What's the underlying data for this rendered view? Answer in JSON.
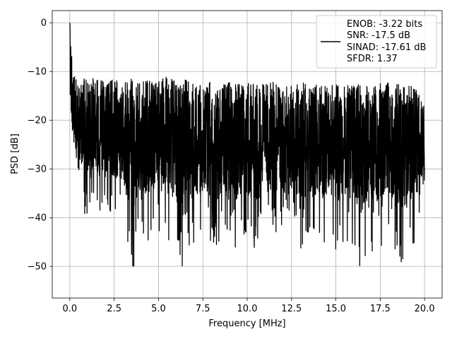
{
  "chart_data": {
    "type": "line",
    "title": "",
    "xlabel": "Frequency [MHz]",
    "ylabel": "PSD [dB]",
    "xlim": [
      -0.99,
      20.99
    ],
    "ylim": [
      -56.5,
      2.5
    ],
    "xticks": [
      0.0,
      2.5,
      5.0,
      7.5,
      10.0,
      12.5,
      15.0,
      17.5,
      20.0
    ],
    "xtick_labels": [
      "0.0",
      "2.5",
      "5.0",
      "7.5",
      "10.0",
      "12.5",
      "15.0",
      "17.5",
      "20.0"
    ],
    "yticks": [
      0,
      -10,
      -20,
      -30,
      -40,
      -50
    ],
    "ytick_labels": [
      "0",
      "−10",
      "−20",
      "−30",
      "−40",
      "−50"
    ],
    "grid": true,
    "legend_position": "top-right",
    "legend_entries": [
      "ENOB: -3.22 bits",
      "SNR: -17.5 dB",
      "SINAD: -17.61 dB",
      "SFDR: 1.37"
    ],
    "series_color": "#000000",
    "series": [
      {
        "x": [
          0.0,
          0.03,
          0.06,
          0.1,
          0.15,
          0.2,
          0.3,
          0.4,
          0.5,
          0.75,
          1.0,
          1.25,
          1.5,
          2.0,
          2.5,
          3.0,
          3.5,
          4.0,
          4.5,
          5.0,
          5.5,
          6.0,
          6.3,
          6.5,
          7.0,
          7.5,
          7.9,
          8.5,
          9.0,
          9.5,
          10.0,
          10.5,
          11.0,
          11.5,
          12.0,
          12.5,
          13.0,
          13.5,
          14.0,
          14.5,
          14.9,
          15.5,
          16.0,
          16.6,
          17.0,
          17.5,
          18.0,
          18.5,
          19.0,
          19.5,
          20.0
        ],
        "upper": [
          0.0,
          -2.0,
          -4.0,
          -6.0,
          -8.5,
          -9.0,
          -10.0,
          -10.5,
          -11.0,
          -11.0,
          -11.0,
          -11.5,
          -11.0,
          -12.0,
          -11.5,
          -12.0,
          -11.5,
          -12.0,
          -11.5,
          -12.0,
          -11.0,
          -12.0,
          -12.5,
          -11.5,
          -12.0,
          -13.0,
          -12.0,
          -13.0,
          -12.0,
          -12.5,
          -12.0,
          -12.5,
          -12.5,
          -12.0,
          -13.0,
          -12.5,
          -12.0,
          -13.0,
          -12.5,
          -13.0,
          -12.5,
          -13.0,
          -12.5,
          -12.5,
          -13.0,
          -12.5,
          -12.0,
          -12.5,
          -13.0,
          -12.5,
          -17.0
        ],
        "lower": [
          -12.0,
          -18.0,
          -21.0,
          -24.0,
          -26.0,
          -27.0,
          -30.0,
          -35.0,
          -32.0,
          -38.0,
          -42.0,
          -36.0,
          -38.0,
          -40.0,
          -39.0,
          -41.0,
          -52.5,
          -44.0,
          -45.5,
          -43.0,
          -44.0,
          -48.0,
          -53.8,
          -53.5,
          -46.0,
          -43.0,
          -51.5,
          -45.0,
          -47.0,
          -46.0,
          -44.5,
          -47.0,
          -43.0,
          -45.0,
          -44.0,
          -42.0,
          -47.0,
          -44.0,
          -45.0,
          -46.5,
          -48.0,
          -45.0,
          -48.0,
          -52.5,
          -49.0,
          -46.5,
          -45.0,
          -51.0,
          -49.0,
          -46.0,
          -35.0
        ],
        "mean": [
          0.0,
          -10.0,
          -13.0,
          -16.0,
          -18.0,
          -19.0,
          -20.0,
          -21.0,
          -21.5,
          -22.0,
          -22.5,
          -23.0,
          -23.0,
          -23.5,
          -23.5,
          -24.0,
          -24.0,
          -24.0,
          -24.0,
          -24.0,
          -24.0,
          -24.0,
          -24.0,
          -24.0,
          -24.0,
          -24.0,
          -24.0,
          -24.0,
          -24.0,
          -24.0,
          -24.0,
          -24.0,
          -24.0,
          -24.0,
          -24.0,
          -24.0,
          -24.0,
          -24.0,
          -24.0,
          -24.0,
          -24.0,
          -24.0,
          -24.0,
          -24.0,
          -24.0,
          -24.0,
          -24.0,
          -24.0,
          -24.0,
          -24.0,
          -24.0
        ]
      }
    ]
  }
}
